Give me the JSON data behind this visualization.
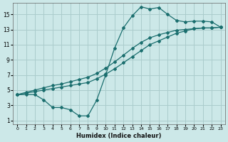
{
  "xlabel": "Humidex (Indice chaleur)",
  "ylabel": "",
  "background_color": "#cce8e8",
  "grid_color": "#aacccc",
  "line_color": "#1a6e6e",
  "xlim": [
    -0.5,
    23.5
  ],
  "ylim": [
    0.5,
    16.5
  ],
  "xticks": [
    0,
    1,
    2,
    3,
    4,
    5,
    6,
    7,
    8,
    9,
    10,
    11,
    12,
    13,
    14,
    15,
    16,
    17,
    18,
    19,
    20,
    21,
    22,
    23
  ],
  "yticks": [
    1,
    3,
    5,
    7,
    9,
    11,
    13,
    15
  ],
  "line1_x": [
    0,
    1,
    2,
    3,
    4,
    5,
    6,
    7,
    8,
    9,
    10,
    11,
    12,
    13,
    14,
    15,
    16,
    17,
    18,
    19,
    20,
    21,
    22,
    23
  ],
  "line1_y": [
    4.4,
    4.4,
    4.4,
    3.7,
    2.7,
    2.7,
    2.4,
    1.6,
    1.6,
    3.7,
    7.0,
    10.5,
    13.2,
    14.8,
    16.0,
    15.7,
    15.9,
    15.0,
    14.2,
    14.0,
    14.1,
    14.1,
    14.0,
    13.3
  ],
  "line2_x": [
    0,
    1,
    2,
    3,
    4,
    5,
    6,
    7,
    8,
    9,
    10,
    11,
    12,
    13,
    14,
    15,
    16,
    17,
    18,
    19,
    20,
    21,
    22,
    23
  ],
  "line2_y": [
    4.4,
    4.6,
    4.8,
    5.0,
    5.2,
    5.4,
    5.6,
    5.8,
    6.0,
    6.5,
    7.1,
    7.8,
    8.6,
    9.4,
    10.2,
    11.0,
    11.5,
    12.0,
    12.5,
    12.8,
    13.1,
    13.2,
    13.2,
    13.3
  ],
  "line3_x": [
    0,
    1,
    2,
    3,
    4,
    5,
    6,
    7,
    8,
    9,
    10,
    11,
    12,
    13,
    14,
    15,
    16,
    17,
    18,
    19,
    20,
    21,
    22,
    23
  ],
  "line3_y": [
    4.4,
    4.7,
    5.0,
    5.3,
    5.6,
    5.8,
    6.1,
    6.4,
    6.7,
    7.2,
    7.9,
    8.7,
    9.6,
    10.5,
    11.3,
    11.9,
    12.3,
    12.6,
    12.9,
    13.0,
    13.1,
    13.2,
    13.2,
    13.3
  ]
}
